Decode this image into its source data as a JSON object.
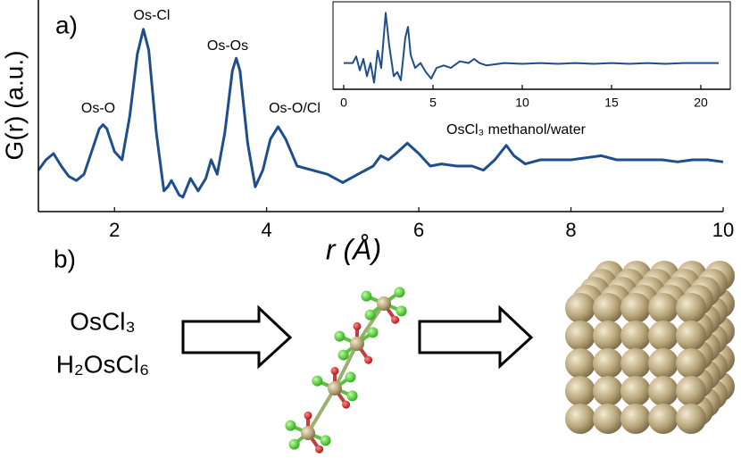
{
  "chart_data": [
    {
      "type": "line",
      "panel_label": "a)",
      "xlabel": "r (Å)",
      "ylabel": "G(r) (a.u.)",
      "color": "#1f4e8c",
      "annotations": [
        "Os-O",
        "Os-Cl",
        "Os-Os",
        "Os-O/Cl"
      ],
      "xlim": [
        1,
        10
      ],
      "xticks": [
        2,
        4,
        6,
        8,
        10
      ],
      "ylim": [
        0,
        10
      ],
      "x": [
        1.0,
        1.1,
        1.2,
        1.3,
        1.4,
        1.5,
        1.6,
        1.7,
        1.8,
        1.85,
        1.9,
        2.0,
        2.1,
        2.2,
        2.3,
        2.38,
        2.45,
        2.55,
        2.65,
        2.7,
        2.75,
        2.85,
        2.9,
        3.0,
        3.1,
        3.2,
        3.27,
        3.35,
        3.45,
        3.55,
        3.6,
        3.65,
        3.75,
        3.85,
        3.95,
        4.05,
        4.15,
        4.25,
        4.4,
        4.6,
        4.8,
        5.0,
        5.2,
        5.4,
        5.5,
        5.6,
        5.7,
        5.85,
        6.0,
        6.15,
        6.3,
        6.5,
        6.7,
        6.85,
        7.0,
        7.15,
        7.25,
        7.4,
        7.6,
        7.8,
        8.0,
        8.2,
        8.4,
        8.6,
        8.8,
        9.0,
        9.2,
        9.4,
        9.6,
        9.8,
        10.0
      ],
      "values": [
        2.0,
        2.5,
        2.8,
        2.2,
        1.7,
        1.5,
        1.8,
        2.9,
        4.0,
        4.2,
        4.0,
        2.9,
        2.5,
        4.6,
        7.6,
        8.8,
        7.8,
        3.8,
        1.0,
        1.2,
        1.5,
        0.8,
        0.7,
        1.6,
        1.0,
        1.6,
        2.5,
        1.8,
        3.8,
        6.8,
        7.4,
        6.8,
        3.3,
        1.2,
        2.0,
        3.5,
        4.1,
        3.5,
        2.2,
        2.0,
        1.8,
        1.4,
        1.8,
        2.2,
        2.7,
        2.5,
        2.8,
        3.3,
        2.8,
        2.2,
        2.3,
        2.2,
        2.2,
        2.0,
        2.5,
        3.2,
        2.7,
        2.3,
        2.5,
        2.5,
        2.5,
        2.6,
        2.7,
        2.5,
        2.5,
        2.5,
        2.5,
        2.4,
        2.5,
        2.5,
        2.4
      ]
    },
    {
      "type": "line",
      "xlabel": "OsCl₃ methanol/water",
      "color": "#1f4e8c",
      "xlim": [
        0,
        21
      ],
      "xticks": [
        0,
        5,
        10,
        15,
        20
      ],
      "ylim": [
        0,
        10
      ],
      "x": [
        0,
        0.5,
        0.7,
        0.9,
        1.1,
        1.3,
        1.5,
        1.7,
        1.9,
        2.1,
        2.35,
        2.55,
        2.8,
        3.0,
        3.2,
        3.45,
        3.6,
        3.75,
        4.0,
        4.3,
        4.6,
        4.9,
        5.2,
        5.6,
        6.0,
        6.5,
        7.0,
        7.3,
        7.6,
        8,
        9,
        10,
        11,
        12,
        13,
        14,
        15,
        16,
        17,
        18,
        19,
        20,
        21
      ],
      "values": [
        3.2,
        3.2,
        4.0,
        2.3,
        3.7,
        1.6,
        3.2,
        0.8,
        4.7,
        2.6,
        9.3,
        5.3,
        1.6,
        2.1,
        1.1,
        6.3,
        7.6,
        4.2,
        2.6,
        3.2,
        2.1,
        1.3,
        2.6,
        2.9,
        2.6,
        3.4,
        3.2,
        3.7,
        3.2,
        2.9,
        3.2,
        3.1,
        3.2,
        3.1,
        3.2,
        3.1,
        3.2,
        3.1,
        3.2,
        3.1,
        3.2,
        3.2,
        3.2
      ]
    }
  ],
  "scheme": {
    "panel_label": "b)",
    "precursors": [
      "OsCl₃",
      "H₂OsCl₆"
    ]
  }
}
